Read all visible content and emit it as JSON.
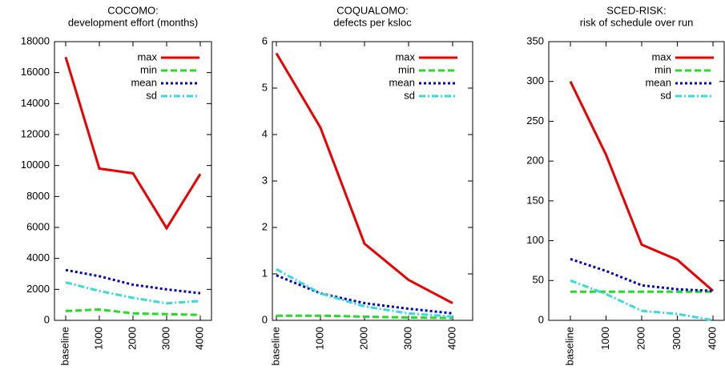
{
  "chart_data": [
    {
      "type": "line",
      "title": "COCOMO:",
      "subtitle": "development effort (months)",
      "categories": [
        "baseline",
        "1000",
        "2000",
        "3000",
        "4000"
      ],
      "series": [
        {
          "name": "max",
          "color": "#ee0000",
          "values": [
            17000,
            9800,
            9500,
            5950,
            9450
          ]
        },
        {
          "name": "min",
          "color": "#22dd22",
          "values": [
            600,
            700,
            450,
            400,
            350
          ]
        },
        {
          "name": "mean",
          "color": "#0000cc",
          "values": [
            3250,
            2850,
            2300,
            2000,
            1750
          ]
        },
        {
          "name": "sd",
          "color": "#33dddd",
          "values": [
            2450,
            1900,
            1450,
            1100,
            1250
          ]
        }
      ],
      "ylim": [
        0,
        18000
      ],
      "yticks": [
        0,
        2000,
        4000,
        6000,
        8000,
        10000,
        12000,
        14000,
        16000,
        18000
      ],
      "legend": "upper right"
    },
    {
      "type": "line",
      "title": "COQUALOMO:",
      "subtitle": "defects per ksloc",
      "categories": [
        "baseline",
        "1000",
        "2000",
        "3000",
        "4000"
      ],
      "series": [
        {
          "name": "max",
          "color": "#ee0000",
          "values": [
            5.75,
            4.15,
            1.65,
            0.87,
            0.37
          ]
        },
        {
          "name": "min",
          "color": "#22dd22",
          "values": [
            0.1,
            0.1,
            0.08,
            0.06,
            0.05
          ]
        },
        {
          "name": "mean",
          "color": "#0000cc",
          "values": [
            0.97,
            0.58,
            0.37,
            0.25,
            0.15
          ]
        },
        {
          "name": "sd",
          "color": "#33dddd",
          "values": [
            1.1,
            0.58,
            0.3,
            0.15,
            0.08
          ]
        }
      ],
      "ylim": [
        0,
        6
      ],
      "yticks": [
        0,
        1,
        2,
        3,
        4,
        5,
        6
      ],
      "legend": "upper right"
    },
    {
      "type": "line",
      "title": "SCED-RISK:",
      "subtitle": "risk of schedule over run",
      "categories": [
        "baseline",
        "1000",
        "2000",
        "3000",
        "4000"
      ],
      "series": [
        {
          "name": "max",
          "color": "#ee0000",
          "values": [
            300,
            208,
            95,
            76,
            37
          ]
        },
        {
          "name": "min",
          "color": "#22dd22",
          "values": [
            36,
            36,
            36,
            36,
            36
          ]
        },
        {
          "name": "mean",
          "color": "#0000cc",
          "values": [
            77,
            62,
            44,
            39,
            37
          ]
        },
        {
          "name": "sd",
          "color": "#33dddd",
          "values": [
            50,
            33,
            12,
            8,
            0
          ]
        }
      ],
      "ylim": [
        0,
        350
      ],
      "yticks": [
        0,
        50,
        100,
        150,
        200,
        250,
        300,
        350
      ],
      "legend": "upper right"
    }
  ]
}
